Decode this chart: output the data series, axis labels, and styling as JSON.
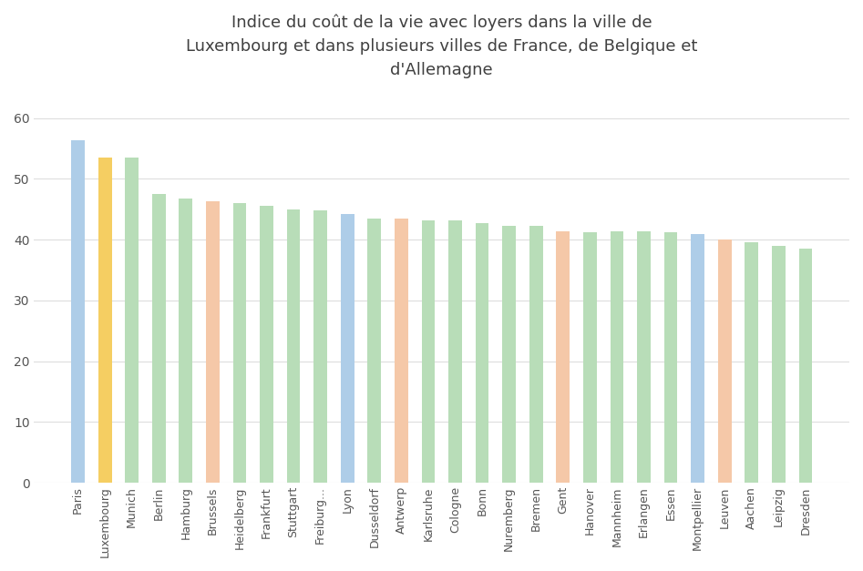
{
  "categories": [
    "Paris",
    "Luxembourg",
    "Munich",
    "Berlin",
    "Hamburg",
    "Brussels",
    "Heidelberg",
    "Frankfurt",
    "Stuttgart",
    "Freiburg...",
    "Lyon",
    "Dusseldorf",
    "Antwerp",
    "Karlsruhe",
    "Cologne",
    "Bonn",
    "Nuremberg",
    "Bremen",
    "Gent",
    "Hanover",
    "Mannheim",
    "Erlangen",
    "Essen",
    "Montpellier",
    "Leuven",
    "Aachen",
    "Leipzig",
    "Dresden"
  ],
  "values": [
    56.3,
    53.5,
    53.5,
    47.5,
    46.7,
    46.3,
    46.0,
    45.5,
    45.0,
    44.8,
    44.2,
    43.5,
    43.5,
    43.2,
    43.2,
    42.7,
    42.3,
    42.2,
    41.3,
    41.2,
    41.4,
    41.4,
    41.2,
    40.9,
    40.0,
    39.5,
    39.0,
    38.5
  ],
  "colors": [
    "#AECDE8",
    "#F5CE62",
    "#B8DDB8",
    "#B8DDB8",
    "#B8DDB8",
    "#F5C8A8",
    "#B8DDB8",
    "#B8DDB8",
    "#B8DDB8",
    "#B8DDB8",
    "#AECDE8",
    "#B8DDB8",
    "#F5C8A8",
    "#B8DDB8",
    "#B8DDB8",
    "#B8DDB8",
    "#B8DDB8",
    "#B8DDB8",
    "#F5C8A8",
    "#B8DDB8",
    "#B8DDB8",
    "#B8DDB8",
    "#B8DDB8",
    "#AECDE8",
    "#F5C8A8",
    "#B8DDB8",
    "#B8DDB8",
    "#B8DDB8"
  ],
  "title": "Indice du coût de la vie avec loyers dans la ville de\nLuxembourg et dans plusieurs villes de France, de Belgique et\nd'Allemagne",
  "ylim": [
    0,
    65
  ],
  "yticks": [
    0,
    10,
    20,
    30,
    40,
    50,
    60
  ],
  "title_fontsize": 13,
  "background_color": "#FFFFFF",
  "grid_color": "#DDDDDD",
  "bar_width": 0.5,
  "tick_fontsize": 9,
  "ytick_fontsize": 10
}
